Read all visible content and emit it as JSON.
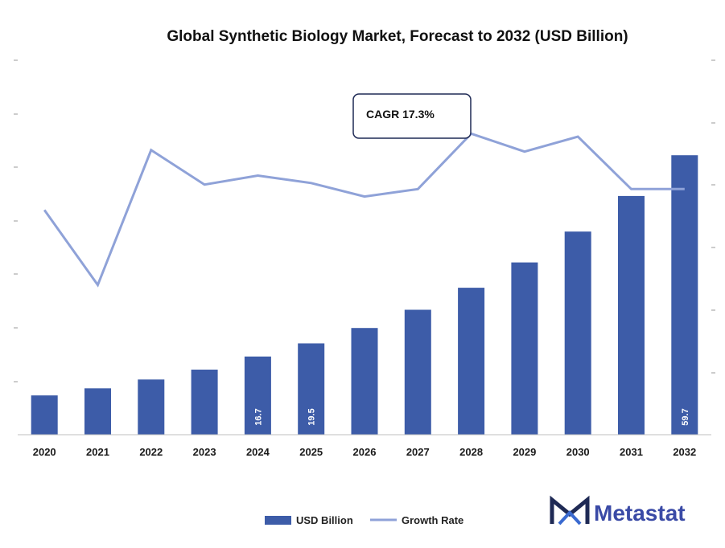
{
  "chart_data": {
    "type": "bar",
    "title": "Global Synthetic Biology Market, Forecast to 2032 (USD Billion)",
    "categories": [
      "2020",
      "2021",
      "2022",
      "2023",
      "2024",
      "2025",
      "2026",
      "2027",
      "2028",
      "2029",
      "2030",
      "2031",
      "2032"
    ],
    "series": [
      {
        "name": "USD Billion",
        "type": "bar",
        "axis": "left",
        "color": "#3d5ca8",
        "values": [
          8.4,
          9.9,
          11.8,
          13.9,
          16.7,
          19.5,
          22.8,
          26.7,
          31.4,
          36.8,
          43.4,
          51.0,
          59.7
        ]
      },
      {
        "name": "Growth Rate",
        "type": "line",
        "axis": "right",
        "color": "#8fa2d8",
        "values": [
          15.0,
          10.0,
          19.0,
          16.7,
          17.3,
          16.8,
          15.9,
          16.4,
          20.1,
          18.9,
          19.9,
          16.4,
          16.4
        ]
      }
    ],
    "data_labels": {
      "4": "16.7",
      "5": "19.5",
      "12": "59.7"
    },
    "ylim_left": [
      0,
      80
    ],
    "ylim_right": [
      0,
      25
    ],
    "grid": false,
    "legend_position": "bottom-center"
  },
  "annotation": {
    "text": "CAGR 17.3%"
  },
  "logo": {
    "text": "Metastat"
  }
}
